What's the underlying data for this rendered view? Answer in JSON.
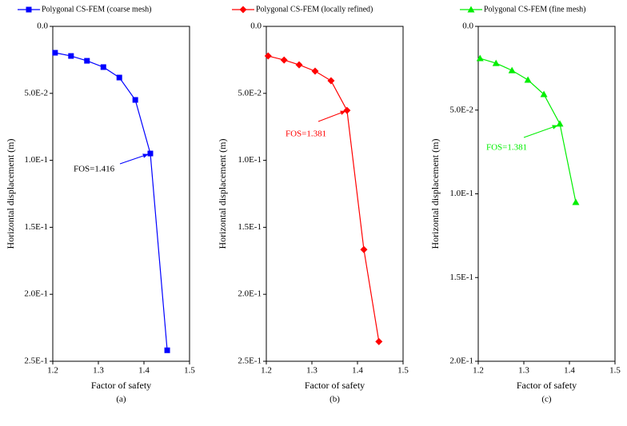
{
  "chart_data": [
    {
      "type": "line",
      "caption": "(a)",
      "xlabel": "Factor of safety",
      "ylabel": "Horizontal displacement (m)",
      "annotation": "FOS=1.416",
      "y_inverted": true,
      "x": [
        1.205,
        1.24,
        1.275,
        1.311,
        1.346,
        1.381,
        1.414,
        1.451
      ],
      "series": [
        {
          "name": "Polygonal CS-FEM (coarse mesh)",
          "color": "#0000ff",
          "marker": "square",
          "values": [
            0.0197,
            0.0221,
            0.0257,
            0.0304,
            0.0382,
            0.0549,
            0.0949,
            0.2418
          ]
        }
      ],
      "xlim": [
        1.2,
        1.5
      ],
      "xticks": [
        1.2,
        1.3,
        1.4,
        1.5
      ],
      "ylim": [
        0,
        0.25
      ],
      "yticks": [
        {
          "value": 0,
          "label": "0.0"
        },
        {
          "value": 0.05,
          "label": "5.0E-2"
        },
        {
          "value": 0.1,
          "label": "1.0E-1"
        },
        {
          "value": 0.15,
          "label": "1.5E-1"
        },
        {
          "value": 0.2,
          "label": "2.0E-1"
        },
        {
          "value": 0.25,
          "label": "2.5E-1"
        }
      ]
    },
    {
      "type": "line",
      "caption": "(b)",
      "xlabel": "Factor of safety",
      "ylabel": "Horizontal displacement (m)",
      "annotation": "FOS=1.381",
      "y_inverted": true,
      "x": [
        1.204,
        1.239,
        1.272,
        1.307,
        1.342,
        1.377,
        1.414,
        1.447
      ],
      "series": [
        {
          "name": "Polygonal CS-FEM  (locally refined)",
          "color": "#ff0000",
          "marker": "diamond",
          "values": [
            0.0221,
            0.0251,
            0.0287,
            0.0334,
            0.0406,
            0.0627,
            0.1666,
            0.2353
          ]
        }
      ],
      "xlim": [
        1.2,
        1.5
      ],
      "xticks": [
        1.2,
        1.3,
        1.4,
        1.5
      ],
      "ylim": [
        0,
        0.25
      ],
      "yticks": [
        {
          "value": 0,
          "label": "0.0"
        },
        {
          "value": 0.05,
          "label": "5.0E-2"
        },
        {
          "value": 0.1,
          "label": "1.0E-1"
        },
        {
          "value": 0.15,
          "label": "1.5E-1"
        },
        {
          "value": 0.2,
          "label": "2.0E-1"
        },
        {
          "value": 0.25,
          "label": "2.5E-1"
        }
      ]
    },
    {
      "type": "line",
      "caption": "(c)",
      "xlabel": "Factor of safety",
      "ylabel": "Horizontal displacement (m)",
      "annotation": "FOS=1.381",
      "y_inverted": true,
      "x": [
        1.204,
        1.239,
        1.274,
        1.309,
        1.344,
        1.379,
        1.414
      ],
      "series": [
        {
          "name": "Polygonal CS-FEM (fine mesh)",
          "color": "#00ee00",
          "marker": "triangle",
          "values": [
            0.0191,
            0.022,
            0.0263,
            0.032,
            0.0406,
            0.0582,
            0.105
          ]
        }
      ],
      "xlim": [
        1.2,
        1.5
      ],
      "xticks": [
        1.2,
        1.3,
        1.4,
        1.5
      ],
      "ylim": [
        0,
        0.2
      ],
      "yticks": [
        {
          "value": 0,
          "label": "0.0"
        },
        {
          "value": 0.05,
          "label": "5.0E-2"
        },
        {
          "value": 0.1,
          "label": "1.0E-1"
        },
        {
          "value": 0.15,
          "label": "1.5E-1"
        },
        {
          "value": 0.2,
          "label": "2.0E-1"
        }
      ]
    }
  ]
}
